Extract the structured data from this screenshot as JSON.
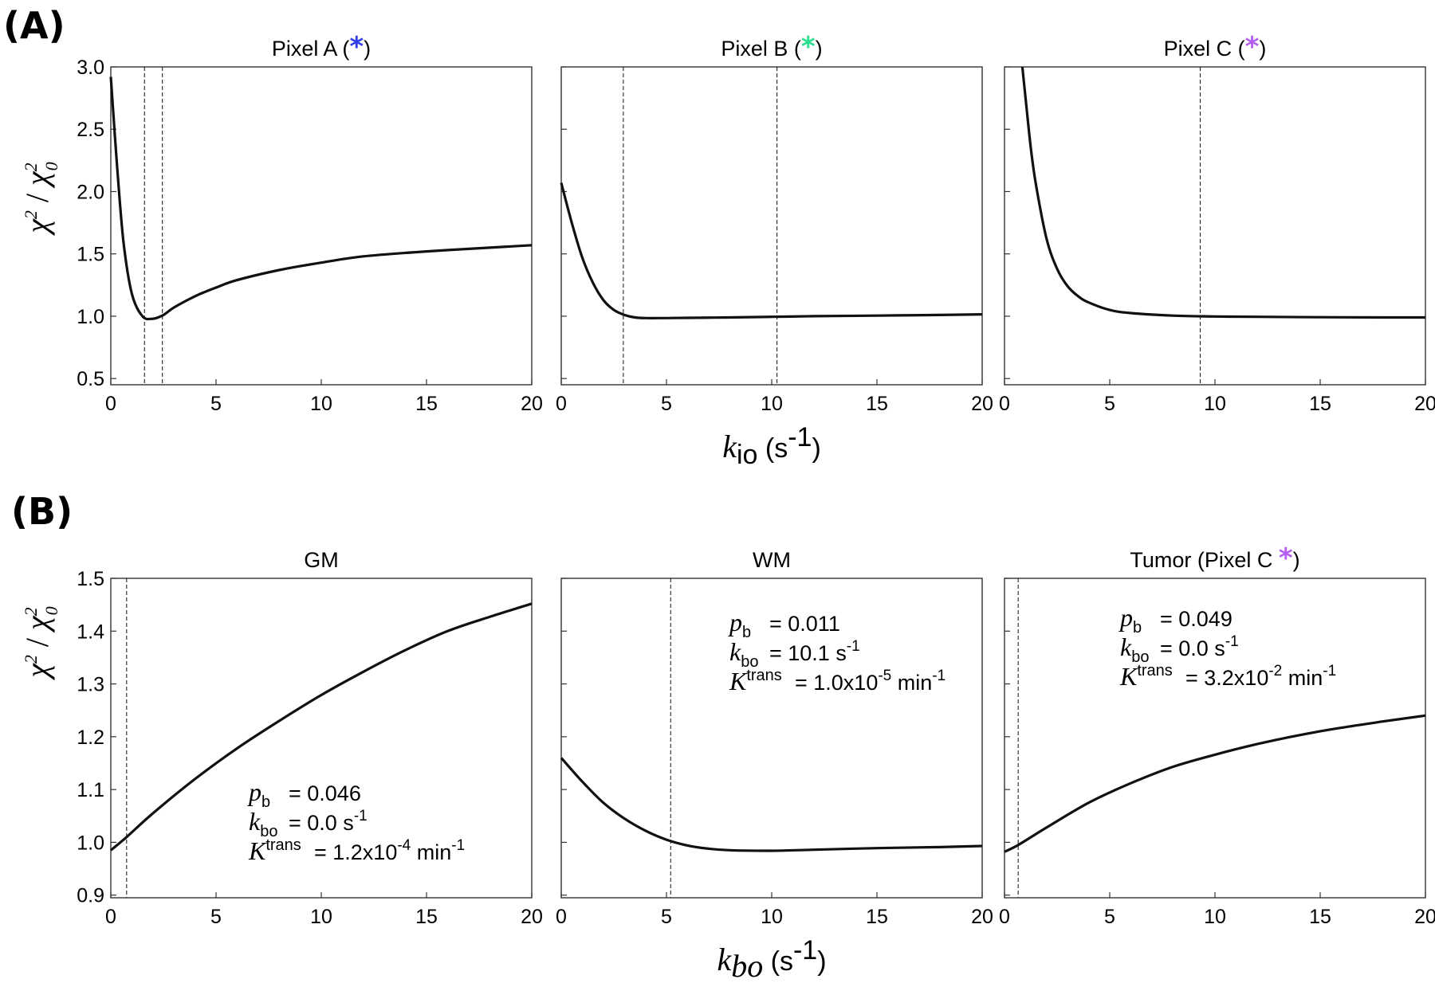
{
  "panel_labels": {
    "a": "(A)",
    "b": "(B)"
  },
  "star_glyph": "*",
  "row_a": {
    "ylabel": {
      "chi": "χ",
      "sup": "2",
      "slash": " / ",
      "chi0": "χ",
      "sub0": "0",
      "sup0": "2"
    },
    "xlabel": {
      "k": "k",
      "sub": "io",
      "unit": " (s",
      "exp": "-1",
      "close": ")"
    },
    "yticks": [
      "0.5",
      "1.0",
      "1.5",
      "2.0",
      "2.5",
      "3.0"
    ],
    "xticks": [
      "0",
      "5",
      "10",
      "15",
      "20"
    ]
  },
  "row_b": {
    "ylabel": {
      "chi": "χ",
      "sup": "2",
      "slash": " / ",
      "chi0": "χ",
      "sub0": "0",
      "sup0": "2"
    },
    "xlabel": {
      "k": "k",
      "sub": "bo",
      "unit": " (s",
      "exp": "-1",
      "close": ")"
    },
    "yticks": [
      "0.9",
      "1.0",
      "1.1",
      "1.2",
      "1.3",
      "1.4",
      "1.5"
    ],
    "xticks": [
      "0",
      "5",
      "10",
      "15",
      "20"
    ]
  },
  "colors": {
    "star_a": "#2f3ee8",
    "star_b": "#27e08d",
    "star_c": "#b35cf0",
    "curve": "#111111",
    "frame": "#333333"
  },
  "chart_data": [
    {
      "type": "line",
      "title": "Pixel A (*)",
      "title_text": "Pixel A (",
      "title_close": ")",
      "xlim": [
        0,
        20
      ],
      "ylim": [
        0.45,
        3.0
      ],
      "x": [
        0,
        0.3,
        0.6,
        1.0,
        1.5,
        2.0,
        2.5,
        3.0,
        4.0,
        5.0,
        6.0,
        8.0,
        10.0,
        12.0,
        15.0,
        18.0,
        20.0
      ],
      "y": [
        2.92,
        2.2,
        1.6,
        1.18,
        1.0,
        0.98,
        1.01,
        1.07,
        1.16,
        1.23,
        1.29,
        1.37,
        1.43,
        1.48,
        1.52,
        1.55,
        1.57
      ],
      "vlines": [
        1.6,
        2.45
      ],
      "annotations": []
    },
    {
      "type": "line",
      "title": "Pixel B (*)",
      "title_text": "Pixel B (",
      "title_close": ")",
      "xlim": [
        0,
        20
      ],
      "ylim": [
        0.45,
        3.0
      ],
      "x": [
        0,
        0.5,
        1.0,
        1.5,
        2.0,
        2.5,
        3.0,
        3.5,
        4.0,
        5.0,
        6.0,
        8.0,
        10.0,
        12.0,
        15.0,
        18.0,
        20.0
      ],
      "y": [
        2.07,
        1.75,
        1.47,
        1.27,
        1.13,
        1.05,
        1.01,
        0.99,
        0.985,
        0.985,
        0.987,
        0.99,
        0.995,
        1.0,
        1.005,
        1.01,
        1.015
      ],
      "vlines": [
        2.95,
        10.25
      ],
      "annotations": []
    },
    {
      "type": "line",
      "title": "Pixel C (*)",
      "title_text": "Pixel C (",
      "title_close": ")",
      "xlim": [
        0,
        20
      ],
      "ylim": [
        0.45,
        3.0
      ],
      "x": [
        0.85,
        1.0,
        1.25,
        1.5,
        2.0,
        2.5,
        3.0,
        3.5,
        4.0,
        5.0,
        6.0,
        8.0,
        10.0,
        12.0,
        15.0,
        18.0,
        20.0
      ],
      "y": [
        3.0,
        2.75,
        2.35,
        2.05,
        1.62,
        1.38,
        1.24,
        1.16,
        1.11,
        1.05,
        1.025,
        1.005,
        0.998,
        0.995,
        0.992,
        0.99,
        0.99
      ],
      "vlines": [
        9.3
      ],
      "annotations": []
    },
    {
      "type": "line",
      "title": "GM",
      "title_text": "GM",
      "title_close": "",
      "xlim": [
        0,
        20
      ],
      "ylim": [
        0.895,
        1.5
      ],
      "x": [
        0,
        0.75,
        2,
        4,
        6,
        8,
        10,
        12,
        14,
        16,
        18,
        20
      ],
      "y": [
        0.985,
        1.01,
        1.055,
        1.12,
        1.178,
        1.23,
        1.279,
        1.323,
        1.364,
        1.4,
        1.427,
        1.452
      ],
      "vlines": [
        0.75
      ],
      "annotations": [
        {
          "sym": "p",
          "sub": "b",
          "eq": " = 0.046",
          "exp": "",
          "tail": ""
        },
        {
          "sym": "k",
          "sub": "bo",
          "eq": " = 0.0 s",
          "exp": "-1",
          "tail": ""
        },
        {
          "sym": "K",
          "sub": "",
          "sup": "trans",
          "eq": "= 1.2x10",
          "exp": "-4",
          "tail": " min",
          "exp2": "-1"
        }
      ],
      "annotation_pos": "bottom-center"
    },
    {
      "type": "line",
      "title": "WM",
      "title_text": "WM",
      "title_close": "",
      "xlim": [
        0,
        20
      ],
      "ylim": [
        0.895,
        1.5
      ],
      "x": [
        0,
        1,
        2,
        3,
        4,
        5,
        6,
        7,
        8,
        10,
        12,
        15,
        18,
        20
      ],
      "y": [
        1.16,
        1.115,
        1.075,
        1.045,
        1.022,
        1.005,
        0.994,
        0.988,
        0.985,
        0.984,
        0.986,
        0.989,
        0.991,
        0.993
      ],
      "vlines": [
        5.2
      ],
      "annotations": [
        {
          "sym": "p",
          "sub": "b",
          "eq": " = 0.011",
          "exp": "",
          "tail": ""
        },
        {
          "sym": "k",
          "sub": "bo",
          "eq": " = 10.1 s",
          "exp": "-1",
          "tail": ""
        },
        {
          "sym": "K",
          "sub": "",
          "sup": "trans",
          "eq": "= 1.0x10",
          "exp": "-5",
          "tail": " min",
          "exp2": "-1"
        }
      ],
      "annotation_pos": "top-right"
    },
    {
      "type": "line",
      "title": "Tumor (Pixel C *)",
      "title_text": "Tumor (Pixel C ",
      "title_close": ")",
      "xlim": [
        0,
        20
      ],
      "ylim": [
        0.895,
        1.5
      ],
      "x": [
        0,
        0.65,
        2,
        4,
        6,
        8,
        10,
        12,
        14,
        16,
        18,
        20
      ],
      "y": [
        0.982,
        0.995,
        1.028,
        1.075,
        1.112,
        1.143,
        1.166,
        1.186,
        1.203,
        1.217,
        1.229,
        1.24
      ],
      "vlines": [
        0.65
      ],
      "annotations": [
        {
          "sym": "p",
          "sub": "b",
          "eq": " = 0.049",
          "exp": "",
          "tail": ""
        },
        {
          "sym": "k",
          "sub": "bo",
          "eq": " = 0.0 s",
          "exp": "-1",
          "tail": ""
        },
        {
          "sym": "K",
          "sub": "",
          "sup": "trans",
          "eq": "= 3.2x10",
          "exp": "-2",
          "tail": " min",
          "exp2": "-1"
        }
      ],
      "annotation_pos": "top-left"
    }
  ]
}
